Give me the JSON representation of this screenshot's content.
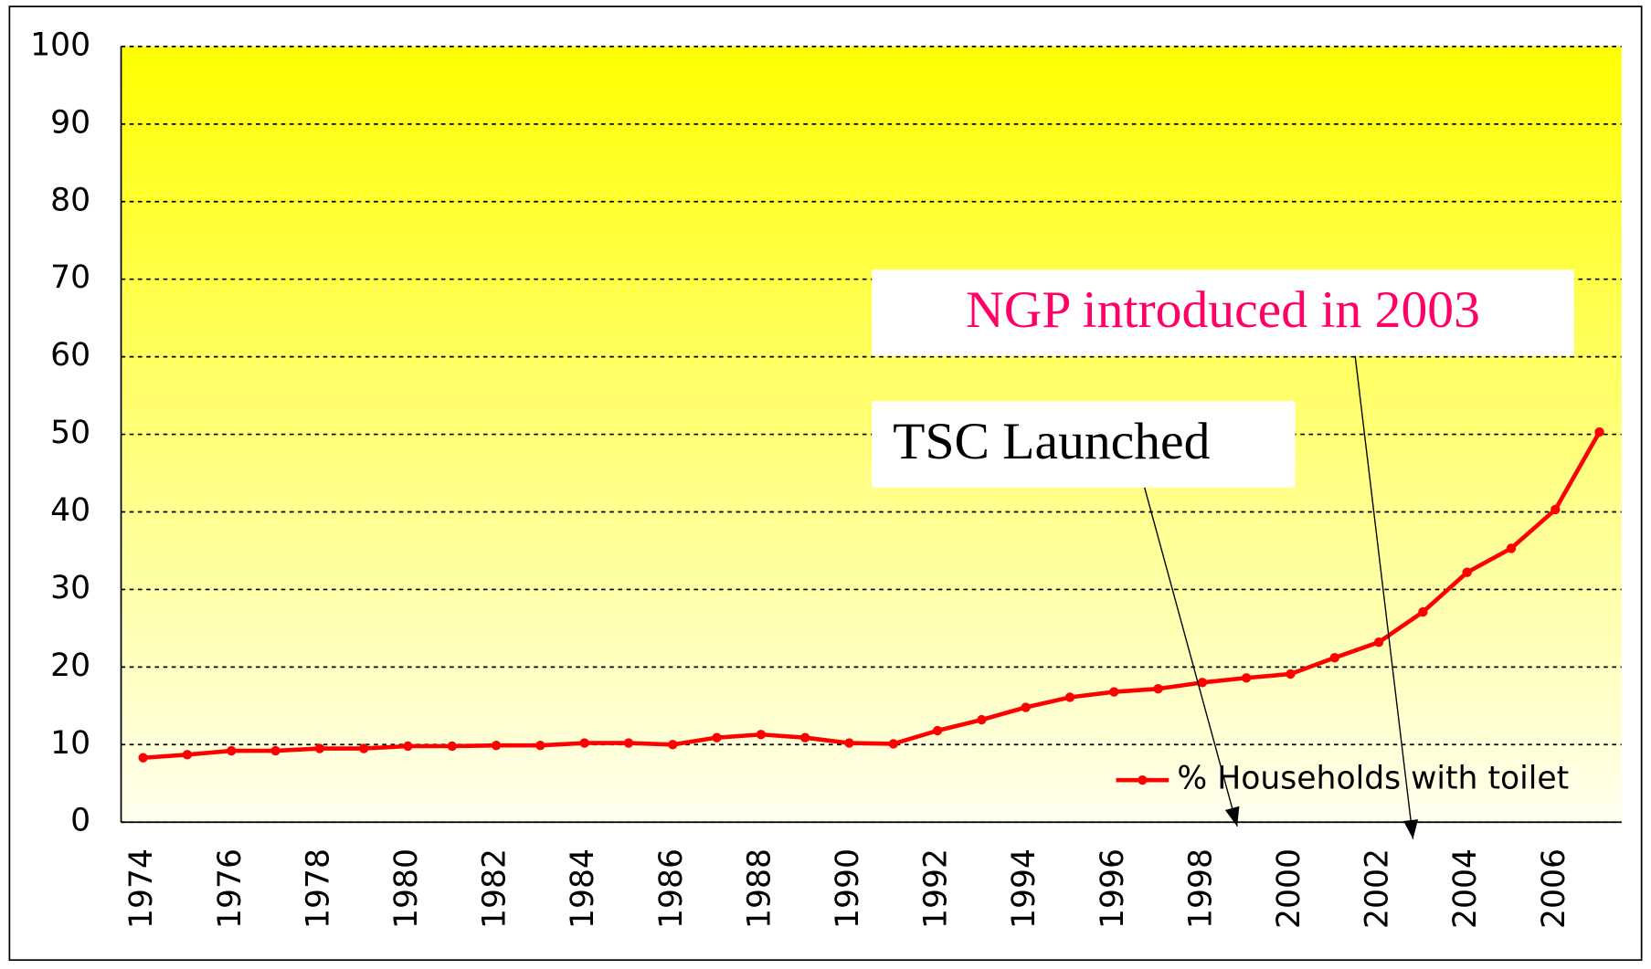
{
  "chart_data": {
    "type": "line",
    "categories": [
      "1974",
      null,
      "1976",
      null,
      "1978",
      null,
      "1980",
      null,
      "1982",
      null,
      "1984",
      null,
      "1986",
      null,
      "1988",
      null,
      "1990",
      null,
      "1992",
      null,
      "1994",
      null,
      "1996",
      null,
      "1998",
      null,
      "2000",
      null,
      "2002",
      null,
      "2004",
      null,
      "2006",
      null
    ],
    "series": [
      {
        "name": "% Households with toilet",
        "color": "#ff0000",
        "values": [
          8.3,
          8.7,
          9.2,
          9.2,
          9.5,
          9.5,
          9.8,
          9.8,
          9.9,
          9.9,
          10.2,
          10.2,
          10.0,
          10.9,
          11.3,
          10.9,
          10.2,
          10.1,
          11.8,
          13.2,
          14.8,
          16.1,
          16.8,
          17.2,
          18.0,
          18.6,
          19.1,
          21.2,
          23.2,
          27.1,
          32.2,
          35.3,
          40.3,
          50.3
        ]
      }
    ],
    "ylim": [
      0,
      100
    ],
    "yticks": [
      0,
      10,
      20,
      30,
      40,
      50,
      60,
      70,
      80,
      90,
      100
    ],
    "grid": true,
    "legend": "lower right",
    "annotations": [
      {
        "text": "NGP introduced in 2003",
        "color": "#ff0066"
      },
      {
        "text": "TSC Launched",
        "color": "#000000"
      }
    ]
  }
}
